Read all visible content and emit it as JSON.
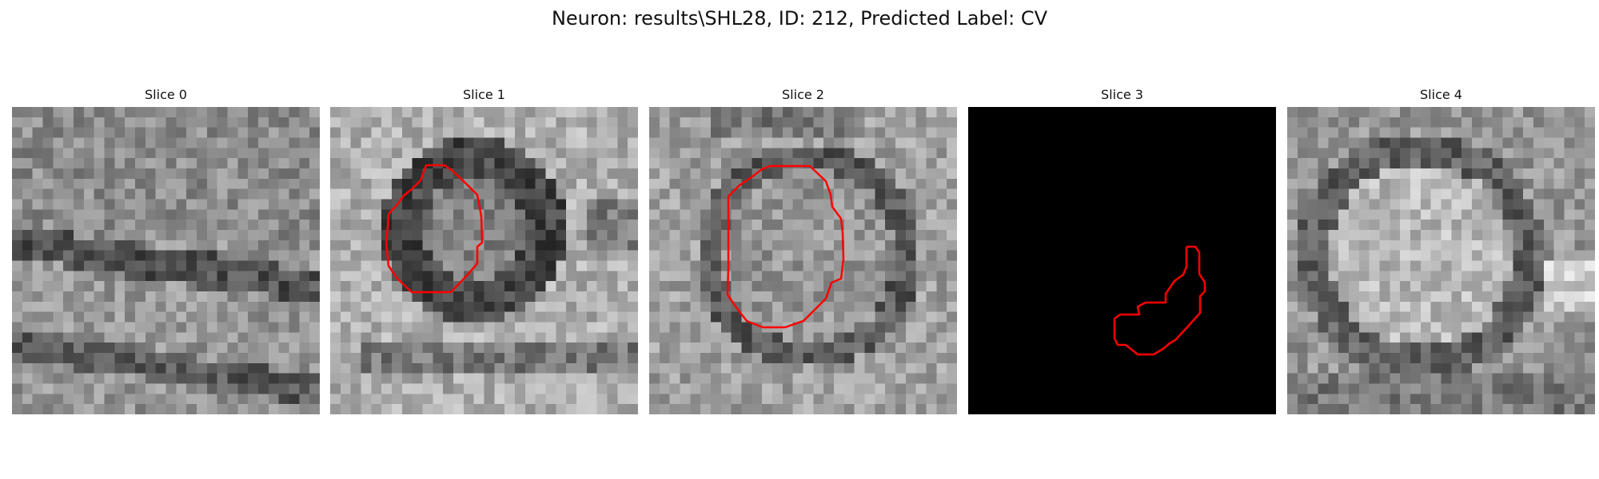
{
  "title": "Neuron: results\\SHL28, ID: 212, Predicted Label: CV",
  "slices": [
    {
      "label": "Slice 0",
      "image": "grayscale noisy texture with dark diagonal band",
      "contour": false
    },
    {
      "label": "Slice 1",
      "image": "grayscale ring-shaped dark structure",
      "contour": true
    },
    {
      "label": "Slice 2",
      "image": "grayscale speckled round structure",
      "contour": true
    },
    {
      "label": "Slice 3",
      "image": "solid black background",
      "contour": true
    },
    {
      "label": "Slice 4",
      "image": "grayscale blurred round structure",
      "contour": false
    }
  ],
  "colors": {
    "contour": "#ff0000",
    "background": "#ffffff"
  }
}
